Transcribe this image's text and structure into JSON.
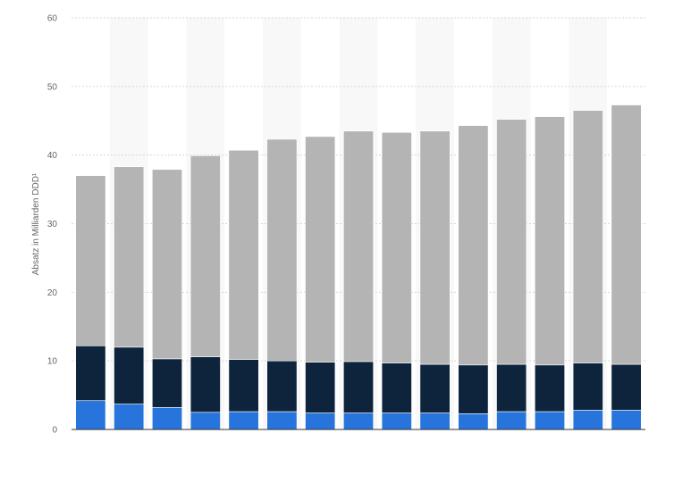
{
  "chart_data": {
    "type": "bar",
    "stacked": true,
    "ylabel": "Absatz in Milliarden DDD¹",
    "ylim": [
      0,
      60
    ],
    "yticks": [
      0,
      10,
      20,
      30,
      40,
      50,
      60
    ],
    "grid": true,
    "legend": "none",
    "categories": [
      "",
      "",
      "",
      "",
      "",
      "",
      "",
      "",
      "",
      "",
      "",
      "",
      "",
      "",
      ""
    ],
    "series": [
      {
        "color": "#2775dc",
        "values": [
          4.2,
          3.7,
          3.2,
          2.5,
          2.6,
          2.6,
          2.4,
          2.4,
          2.4,
          2.4,
          2.3,
          2.6,
          2.6,
          2.8,
          2.8
        ]
      },
      {
        "color": "#0e243d",
        "values": [
          8.0,
          8.3,
          7.1,
          8.1,
          7.6,
          7.4,
          7.4,
          7.5,
          7.3,
          7.1,
          7.1,
          6.9,
          6.8,
          6.9,
          6.7
        ]
      },
      {
        "color": "#b4b4b4",
        "values": [
          24.8,
          26.3,
          27.6,
          29.3,
          30.5,
          32.3,
          32.9,
          33.6,
          33.6,
          34.0,
          34.9,
          35.7,
          36.2,
          36.8,
          37.8
        ]
      }
    ]
  }
}
